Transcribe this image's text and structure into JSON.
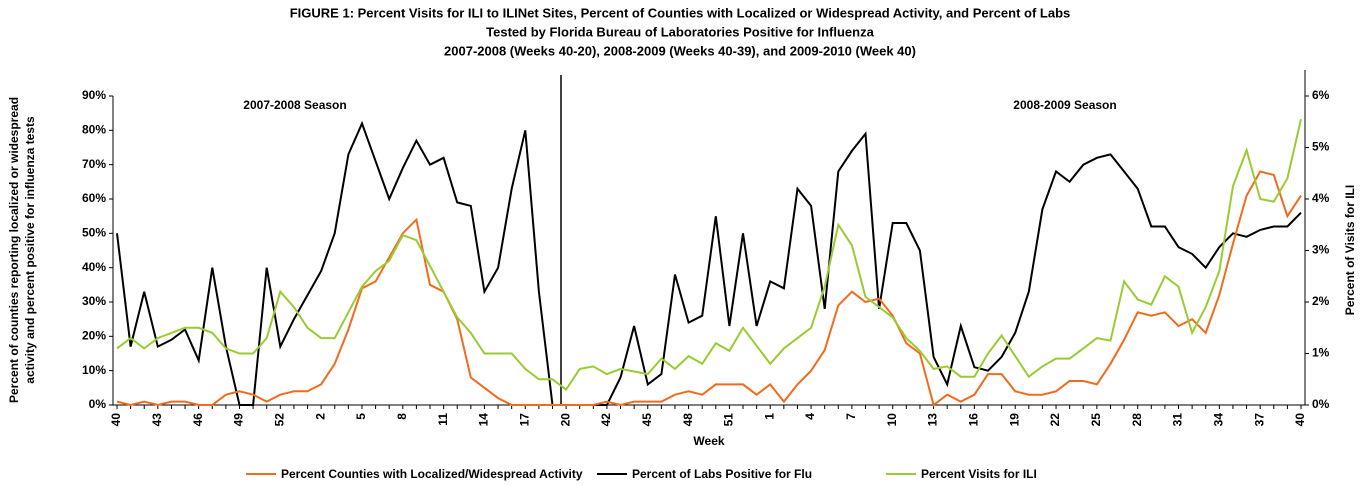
{
  "chart_data": {
    "type": "line",
    "title": [
      "FIGURE 1:  Percent Visits for ILI to ILINet Sites, Percent of Counties with Localized or Widespread Activity, and Percent of Labs",
      "Tested by Florida Bureau of Laboratories Positive for Influenza",
      "2007-2008 (Weeks 40-20), 2008-2009 (Weeks 40-39), and 2009-2010 (Week 40)"
    ],
    "ylabel": [
      "Percent of counties reporting localized or widespread",
      "activity and percent positive for influenza tests"
    ],
    "y2label": "Percent of Visits for ILI",
    "xlabel": "Week",
    "annotations": [
      "2007-2008 Season",
      "2008-2009 Season"
    ],
    "categories": [
      "40",
      null,
      null,
      "43",
      null,
      null,
      "46",
      null,
      null,
      "49",
      null,
      null,
      "52",
      null,
      null,
      "2",
      null,
      null,
      "5",
      null,
      null,
      "8",
      null,
      null,
      "11",
      null,
      null,
      "14",
      null,
      null,
      "17",
      null,
      null,
      "20",
      null,
      null,
      "42",
      null,
      null,
      "45",
      null,
      null,
      "48",
      null,
      null,
      "51",
      null,
      null,
      "1",
      null,
      null,
      "4",
      null,
      null,
      "7",
      null,
      null,
      "10",
      null,
      null,
      "13",
      null,
      null,
      "16",
      null,
      null,
      "19",
      null,
      null,
      "22",
      null,
      null,
      "25",
      null,
      null,
      "28",
      null,
      null,
      "31",
      null,
      null,
      "34",
      null,
      null,
      "37",
      null,
      null,
      "40"
    ],
    "series": [
      {
        "name": "Percent Counties with Localized/Widespread Activity",
        "color": "#f26b1d",
        "axis": "y",
        "values": [
          1,
          0,
          1,
          0,
          1,
          1,
          0,
          0,
          3,
          4,
          3,
          1,
          3,
          4,
          4,
          6,
          12,
          22,
          34,
          36,
          43,
          50,
          54,
          35,
          33,
          25,
          8,
          5,
          2,
          0,
          0,
          0,
          0,
          0,
          0,
          0,
          1,
          0,
          1,
          1,
          1,
          3,
          4,
          3,
          6,
          6,
          6,
          3,
          6,
          1,
          6,
          10,
          16,
          29,
          33,
          30,
          31,
          26,
          18,
          15,
          0,
          3,
          1,
          3,
          9,
          9,
          4,
          3,
          3,
          4,
          7,
          7,
          6,
          12,
          19,
          27,
          26,
          27,
          23,
          25,
          21,
          32,
          47,
          61,
          68,
          67,
          55,
          61
        ]
      },
      {
        "name": "Percent of Labs Positive for Flu",
        "color": "#000000",
        "axis": "y",
        "values": [
          50,
          17,
          33,
          17,
          19,
          22,
          13,
          40,
          17,
          0,
          0,
          40,
          17,
          25,
          32,
          39,
          50,
          73,
          82,
          71,
          60,
          69,
          77,
          70,
          72,
          59,
          58,
          33,
          40,
          63,
          80,
          33,
          0,
          0,
          0,
          0,
          0,
          8,
          23,
          6,
          9,
          38,
          24,
          26,
          55,
          23,
          50,
          23,
          36,
          34,
          63,
          58,
          28,
          68,
          74,
          79,
          28,
          53,
          53,
          45,
          14,
          6,
          23,
          11,
          10,
          14,
          21,
          33,
          57,
          68,
          65,
          70,
          72,
          73,
          68,
          63,
          52,
          52,
          46,
          44,
          40,
          46,
          50,
          49,
          51,
          52,
          52,
          56
        ]
      },
      {
        "name": "Percent Visits for ILI",
        "color": "#99cc33",
        "axis": "y2",
        "values": [
          1.1,
          1.3,
          1.1,
          1.3,
          1.4,
          1.5,
          1.5,
          1.4,
          1.1,
          1.0,
          1.0,
          1.3,
          2.2,
          1.9,
          1.5,
          1.3,
          1.3,
          1.8,
          2.3,
          2.6,
          2.8,
          3.3,
          3.2,
          2.7,
          2.2,
          1.7,
          1.4,
          1.0,
          1.0,
          1.0,
          0.7,
          0.5,
          0.5,
          0.3,
          0.7,
          0.75,
          0.6,
          0.7,
          0.65,
          0.6,
          0.9,
          0.7,
          0.95,
          0.8,
          1.2,
          1.05,
          1.5,
          1.15,
          0.8,
          1.1,
          1.3,
          1.5,
          2.3,
          3.5,
          3.1,
          2.1,
          1.9,
          1.7,
          1.3,
          1.05,
          0.7,
          0.75,
          0.55,
          0.55,
          1.0,
          1.35,
          0.95,
          0.55,
          0.75,
          0.9,
          0.9,
          1.1,
          1.3,
          1.25,
          2.4,
          2.05,
          1.95,
          2.5,
          2.3,
          1.4,
          1.9,
          2.6,
          4.25,
          4.95,
          4.0,
          3.95,
          4.4,
          5.55
        ]
      }
    ],
    "ylim": [
      0,
      90
    ],
    "yticks": [
      {
        "value": 0,
        "label": "0%"
      },
      {
        "value": 10,
        "label": "10%"
      },
      {
        "value": 20,
        "label": "20%"
      },
      {
        "value": 30,
        "label": "30%"
      },
      {
        "value": 40,
        "label": "40%"
      },
      {
        "value": 50,
        "label": "50%"
      },
      {
        "value": 60,
        "label": "60%"
      },
      {
        "value": 70,
        "label": "70%"
      },
      {
        "value": 80,
        "label": "80%"
      },
      {
        "value": 90,
        "label": "90%"
      }
    ],
    "y2lim": [
      0,
      6
    ],
    "y2ticks": [
      {
        "value": 0,
        "label": "0%"
      },
      {
        "value": 1,
        "label": "1%"
      },
      {
        "value": 2,
        "label": "2%"
      },
      {
        "value": 3,
        "label": "3%"
      },
      {
        "value": 4,
        "label": "4%"
      },
      {
        "value": 5,
        "label": "5%"
      },
      {
        "value": 6,
        "label": "6%"
      }
    ],
    "legend": "bottom"
  }
}
